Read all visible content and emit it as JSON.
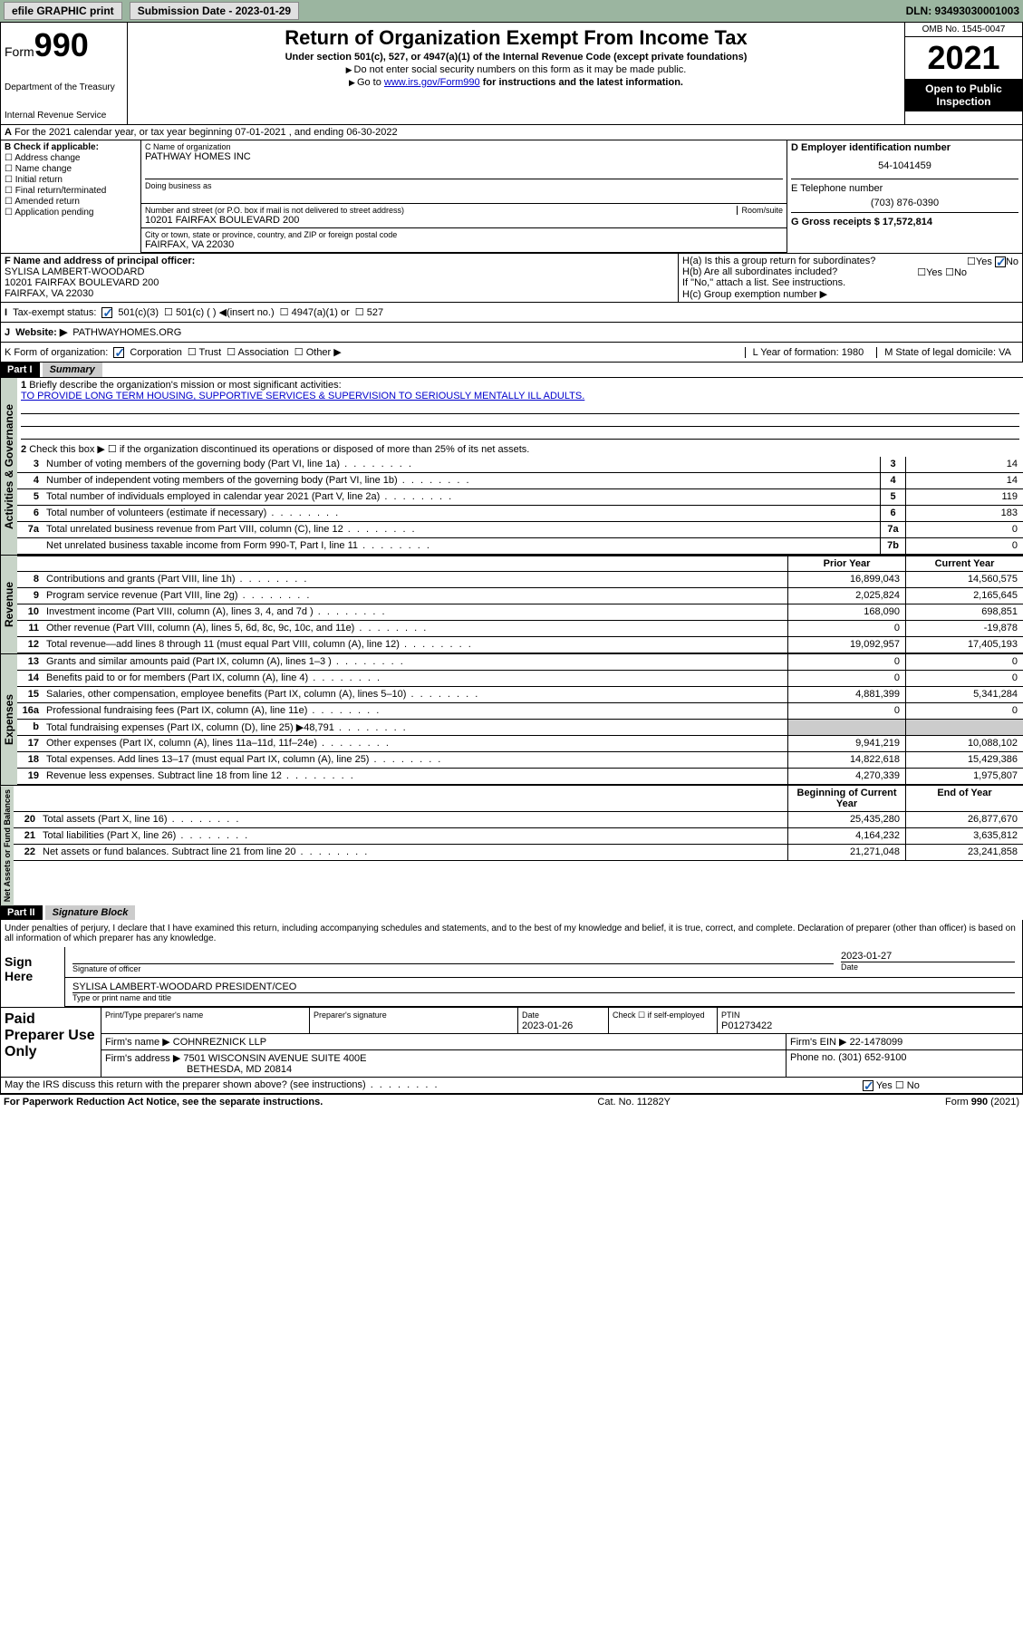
{
  "topbar": {
    "efile_label": "efile GRAPHIC print",
    "submission_label": "Submission Date - 2023-01-29",
    "dln_label": "DLN: 93493030001003"
  },
  "header": {
    "form_label": "Form",
    "form_num": "990",
    "dept": "Department of the Treasury",
    "irs": "Internal Revenue Service",
    "title": "Return of Organization Exempt From Income Tax",
    "subtitle": "Under section 501(c), 527, or 4947(a)(1) of the Internal Revenue Code (except private foundations)",
    "line1": "Do not enter social security numbers on this form as it may be made public.",
    "line2_pre": "Go to ",
    "line2_link": "www.irs.gov/Form990",
    "line2_post": " for instructions and the latest information.",
    "omb": "OMB No. 1545-0047",
    "year": "2021",
    "open": "Open to Public Inspection"
  },
  "row_a": {
    "text": "For the 2021 calendar year, or tax year beginning 07-01-2021   , and ending 06-30-2022",
    "prefix": "A"
  },
  "section_b": {
    "label": "B Check if applicable:",
    "opts": [
      "Address change",
      "Name change",
      "Initial return",
      "Final return/terminated",
      "Amended return",
      "Application pending"
    ]
  },
  "section_c": {
    "name_label": "C Name of organization",
    "name": "PATHWAY HOMES INC",
    "dba_label": "Doing business as",
    "addr_label": "Number and street (or P.O. box if mail is not delivered to street address)",
    "room_label": "Room/suite",
    "addr": "10201 FAIRFAX BOULEVARD 200",
    "city_label": "City or town, state or province, country, and ZIP or foreign postal code",
    "city": "FAIRFAX, VA  22030"
  },
  "section_d": {
    "ein_label": "D Employer identification number",
    "ein": "54-1041459",
    "phone_label": "E Telephone number",
    "phone": "(703) 876-0390",
    "gross_label": "G Gross receipts $ 17,572,814"
  },
  "section_f": {
    "label": "F  Name and address of principal officer:",
    "name": "SYLISA LAMBERT-WOODARD",
    "addr1": "10201 FAIRFAX BOULEVARD 200",
    "addr2": "FAIRFAX, VA  22030"
  },
  "section_h": {
    "ha": "H(a)  Is this a group return for subordinates?",
    "hb": "H(b)  Are all subordinates included?",
    "hb_note": "If \"No,\" attach a list. See instructions.",
    "hc": "H(c)  Group exemption number ▶",
    "yes": "Yes",
    "no": "No"
  },
  "status": {
    "i": "I",
    "label": "Tax-exempt status:",
    "c3": "501(c)(3)",
    "c": "501(c) (   ) ◀(insert no.)",
    "a1": "4947(a)(1) or",
    "527": "527"
  },
  "website": {
    "j": "J",
    "label": "Website: ▶",
    "val": "PATHWAYHOMES.ORG"
  },
  "korg": {
    "k": "K Form of organization:",
    "corp": "Corporation",
    "trust": "Trust",
    "assoc": "Association",
    "other": "Other ▶",
    "l": "L Year of formation: 1980",
    "m": "M State of legal domicile: VA"
  },
  "part1": {
    "header": "Part I",
    "title": "Summary",
    "l1_label": "Briefly describe the organization's mission or most significant activities:",
    "l1_text": "TO PROVIDE LONG TERM HOUSING, SUPPORTIVE SERVICES & SUPERVISION TO SERIOUSLY MENTALLY ILL ADULTS.",
    "l2": "Check this box ▶ ☐  if the organization discontinued its operations or disposed of more than 25% of its net assets.",
    "lines_gov": [
      {
        "n": "3",
        "t": "Number of voting members of the governing body (Part VI, line 1a)",
        "b": "3",
        "v": "14"
      },
      {
        "n": "4",
        "t": "Number of independent voting members of the governing body (Part VI, line 1b)",
        "b": "4",
        "v": "14"
      },
      {
        "n": "5",
        "t": "Total number of individuals employed in calendar year 2021 (Part V, line 2a)",
        "b": "5",
        "v": "119"
      },
      {
        "n": "6",
        "t": "Total number of volunteers (estimate if necessary)",
        "b": "6",
        "v": "183"
      },
      {
        "n": "7a",
        "t": "Total unrelated business revenue from Part VIII, column (C), line 12",
        "b": "7a",
        "v": "0"
      },
      {
        "n": "",
        "t": "Net unrelated business taxable income from Form 990-T, Part I, line 11",
        "b": "7b",
        "v": "0"
      }
    ],
    "col_prior": "Prior Year",
    "col_current": "Current Year",
    "lines_rev": [
      {
        "n": "8",
        "t": "Contributions and grants (Part VIII, line 1h)",
        "p": "16,899,043",
        "c": "14,560,575"
      },
      {
        "n": "9",
        "t": "Program service revenue (Part VIII, line 2g)",
        "p": "2,025,824",
        "c": "2,165,645"
      },
      {
        "n": "10",
        "t": "Investment income (Part VIII, column (A), lines 3, 4, and 7d )",
        "p": "168,090",
        "c": "698,851"
      },
      {
        "n": "11",
        "t": "Other revenue (Part VIII, column (A), lines 5, 6d, 8c, 9c, 10c, and 11e)",
        "p": "0",
        "c": "-19,878"
      },
      {
        "n": "12",
        "t": "Total revenue—add lines 8 through 11 (must equal Part VIII, column (A), line 12)",
        "p": "19,092,957",
        "c": "17,405,193"
      }
    ],
    "lines_exp": [
      {
        "n": "13",
        "t": "Grants and similar amounts paid (Part IX, column (A), lines 1–3 )",
        "p": "0",
        "c": "0"
      },
      {
        "n": "14",
        "t": "Benefits paid to or for members (Part IX, column (A), line 4)",
        "p": "0",
        "c": "0"
      },
      {
        "n": "15",
        "t": "Salaries, other compensation, employee benefits (Part IX, column (A), lines 5–10)",
        "p": "4,881,399",
        "c": "5,341,284"
      },
      {
        "n": "16a",
        "t": "Professional fundraising fees (Part IX, column (A), line 11e)",
        "p": "0",
        "c": "0"
      },
      {
        "n": "b",
        "t": "Total fundraising expenses (Part IX, column (D), line 25) ▶48,791",
        "p": "",
        "c": "",
        "shaded": true
      },
      {
        "n": "17",
        "t": "Other expenses (Part IX, column (A), lines 11a–11d, 11f–24e)",
        "p": "9,941,219",
        "c": "10,088,102"
      },
      {
        "n": "18",
        "t": "Total expenses. Add lines 13–17 (must equal Part IX, column (A), line 25)",
        "p": "14,822,618",
        "c": "15,429,386"
      },
      {
        "n": "19",
        "t": "Revenue less expenses. Subtract line 18 from line 12",
        "p": "4,270,339",
        "c": "1,975,807"
      }
    ],
    "col_begin": "Beginning of Current Year",
    "col_end": "End of Year",
    "lines_net": [
      {
        "n": "20",
        "t": "Total assets (Part X, line 16)",
        "p": "25,435,280",
        "c": "26,877,670"
      },
      {
        "n": "21",
        "t": "Total liabilities (Part X, line 26)",
        "p": "4,164,232",
        "c": "3,635,812"
      },
      {
        "n": "22",
        "t": "Net assets or fund balances. Subtract line 21 from line 20",
        "p": "21,271,048",
        "c": "23,241,858"
      }
    ],
    "vert_gov": "Activities & Governance",
    "vert_rev": "Revenue",
    "vert_exp": "Expenses",
    "vert_net": "Net Assets or Fund Balances"
  },
  "part2": {
    "header": "Part II",
    "title": "Signature Block",
    "decl": "Under penalties of perjury, I declare that I have examined this return, including accompanying schedules and statements, and to the best of my knowledge and belief, it is true, correct, and complete. Declaration of preparer (other than officer) is based on all information of which preparer has any knowledge.",
    "sign_here": "Sign Here",
    "sig_officer": "Signature of officer",
    "sig_date": "2023-01-27",
    "date_label": "Date",
    "officer_name": "SYLISA LAMBERT-WOODARD  PRESIDENT/CEO",
    "type_label": "Type or print name and title",
    "paid": "Paid Preparer Use Only",
    "prep_name_label": "Print/Type preparer's name",
    "prep_sig_label": "Preparer's signature",
    "prep_date_label": "Date",
    "prep_date": "2023-01-26",
    "self_emp": "Check ☐ if self-employed",
    "ptin_label": "PTIN",
    "ptin": "P01273422",
    "firm_name_label": "Firm's name   ▶",
    "firm_name": "COHNREZNICK LLP",
    "firm_ein_label": "Firm's EIN ▶",
    "firm_ein": "22-1478099",
    "firm_addr_label": "Firm's address ▶",
    "firm_addr": "7501 WISCONSIN AVENUE SUITE 400E",
    "firm_city": "BETHESDA, MD  20814",
    "firm_phone_label": "Phone no.",
    "firm_phone": "(301) 652-9100",
    "discuss": "May the IRS discuss this return with the preparer shown above? (see instructions)",
    "yes": "Yes",
    "no": "No"
  },
  "footer": {
    "paperwork": "For Paperwork Reduction Act Notice, see the separate instructions.",
    "cat": "Cat. No. 11282Y",
    "form": "Form 990 (2021)"
  }
}
